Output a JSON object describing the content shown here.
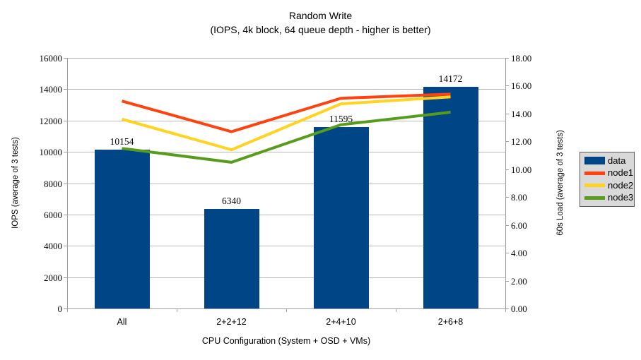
{
  "title": "Random Write",
  "subtitle": "(IOPS, 4k block, 64 queue depth - higher is better)",
  "chart_data": {
    "type": "combo (bar + line)",
    "categories": [
      "All",
      "2+2+12",
      "2+4+10",
      "2+6+8"
    ],
    "bar_series": {
      "name": "data",
      "axis": "left",
      "values": [
        10154,
        6340,
        11595,
        14172
      ],
      "data_labels": [
        "10154",
        "6340",
        "11595",
        "14172"
      ],
      "color": "#004586"
    },
    "line_series": [
      {
        "name": "node1",
        "axis": "right",
        "values": [
          14.9,
          12.7,
          15.1,
          15.4
        ],
        "color": "#ff420e"
      },
      {
        "name": "node2",
        "axis": "right",
        "values": [
          13.6,
          11.4,
          14.7,
          15.2
        ],
        "color": "#ffd320"
      },
      {
        "name": "node3",
        "axis": "right",
        "values": [
          11.5,
          10.5,
          13.2,
          14.1
        ],
        "color": "#579d1c"
      }
    ],
    "left_axis": {
      "label": "IOPS (average of 3 tests)",
      "min": 0,
      "max": 16000,
      "step": 2000,
      "tick_labels": [
        "16000",
        "14000",
        "12000",
        "10000",
        "8000",
        "6000",
        "4000",
        "2000",
        "0"
      ]
    },
    "right_axis": {
      "label": "60s Load (average of 3 tests)",
      "min": 0,
      "max": 18,
      "step": 2,
      "tick_labels": [
        "18.00",
        "16.00",
        "14.00",
        "12.00",
        "10.00",
        "8.00",
        "6.00",
        "4.00",
        "2.00",
        "0.00"
      ]
    },
    "x_axis": {
      "label": "CPU Configuration (System + OSD + VMs)"
    },
    "grid": "horizontal gridlines at left-axis steps",
    "legend": {
      "position": "right",
      "items": [
        {
          "label": "data",
          "swatch": "box",
          "color": "#004586"
        },
        {
          "label": "node1",
          "swatch": "line",
          "color": "#ff420e"
        },
        {
          "label": "node2",
          "swatch": "line",
          "color": "#ffd320"
        },
        {
          "label": "node3",
          "swatch": "line",
          "color": "#579d1c"
        }
      ]
    }
  },
  "colors": {
    "background": "#ffffff",
    "gridline": "#b8b8b8",
    "axis": "#9e9e9e",
    "legend_background": "#d9d9d9",
    "legend_border": "#565656",
    "text": "#000000"
  }
}
